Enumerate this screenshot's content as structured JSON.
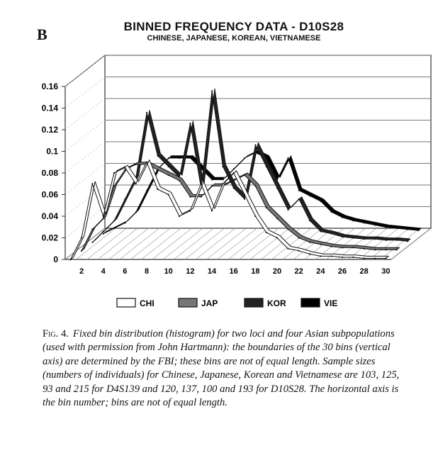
{
  "panel_letter": "B",
  "caption": {
    "fig_label": "Fig. 4.",
    "text": "Fixed bin distribution (histogram) for two loci and four Asian subpopulations (used with permission from John Hartmann): the boundaries of the 30 bins (vertical axis) are determined by the FBI; these bins are not of equal length. Sample sizes (numbers of individuals) for Chinese, Japanese, Korean and Vietnamese are 103, 125, 93 and 215 for D4S139 and 120, 137, 100 and 193 for D10S28. The horizontal axis is the bin number; bins are not of equal length."
  },
  "chart_data": {
    "type": "line",
    "title": "BINNED FREQUENCY DATA - D10S28",
    "subtitle": "CHINESE, JAPANESE, KOREAN, VIETNAMESE",
    "xlabel": "",
    "ylabel": "",
    "projection": "3d-ribbon",
    "x": [
      1,
      2,
      3,
      4,
      5,
      6,
      7,
      8,
      9,
      10,
      11,
      12,
      13,
      14,
      15,
      16,
      17,
      18,
      19,
      20,
      21,
      22,
      23,
      24,
      25,
      26,
      27,
      28,
      29,
      30
    ],
    "x_tick_labels": [
      "2",
      "4",
      "6",
      "8",
      "10",
      "12",
      "14",
      "16",
      "18",
      "20",
      "22",
      "24",
      "26",
      "28",
      "30"
    ],
    "ylim": [
      0,
      0.16
    ],
    "y_tick_labels": [
      "0",
      "0.02",
      "0.04",
      "0.06",
      "0.08",
      "0.1",
      "0.12",
      "0.14",
      "0.16"
    ],
    "grid": true,
    "legend_position": "bottom",
    "series": [
      {
        "name": "CHI",
        "color": "#ffffff",
        "values": [
          0,
          0.02,
          0.07,
          0.04,
          0.08,
          0.085,
          0.07,
          0.09,
          0.065,
          0.06,
          0.04,
          0.045,
          0.07,
          0.045,
          0.07,
          0.08,
          0.06,
          0.04,
          0.025,
          0.02,
          0.01,
          0.008,
          0.005,
          0.003,
          0.003,
          0.002,
          0.002,
          0.001,
          0.001,
          0.001
        ]
      },
      {
        "name": "JAP",
        "color": "#777777",
        "values": [
          0,
          0.02,
          0.03,
          0.06,
          0.075,
          0.08,
          0.08,
          0.075,
          0.07,
          0.065,
          0.05,
          0.05,
          0.06,
          0.06,
          0.065,
          0.07,
          0.06,
          0.04,
          0.03,
          0.02,
          0.012,
          0.008,
          0.006,
          0.004,
          0.003,
          0.003,
          0.002,
          0.001,
          0.001,
          0.001
        ]
      },
      {
        "name": "KOR",
        "color": "#222222",
        "values": [
          0,
          0.01,
          0.02,
          0.04,
          0.06,
          0.12,
          0.08,
          0.07,
          0.06,
          0.11,
          0.05,
          0.14,
          0.07,
          0.05,
          0.04,
          0.09,
          0.07,
          0.05,
          0.03,
          0.04,
          0.02,
          0.01,
          0.008,
          0.005,
          0.004,
          0.003,
          0.003,
          0.002,
          0.002,
          0.001
        ]
      },
      {
        "name": "VIE",
        "color": "#000000",
        "values": [
          0,
          0.005,
          0.01,
          0.02,
          0.04,
          0.06,
          0.07,
          0.07,
          0.07,
          0.06,
          0.05,
          0.05,
          0.06,
          0.07,
          0.075,
          0.07,
          0.05,
          0.07,
          0.04,
          0.035,
          0.03,
          0.02,
          0.015,
          0.012,
          0.01,
          0.008,
          0.006,
          0.005,
          0.004,
          0.003
        ]
      }
    ]
  }
}
